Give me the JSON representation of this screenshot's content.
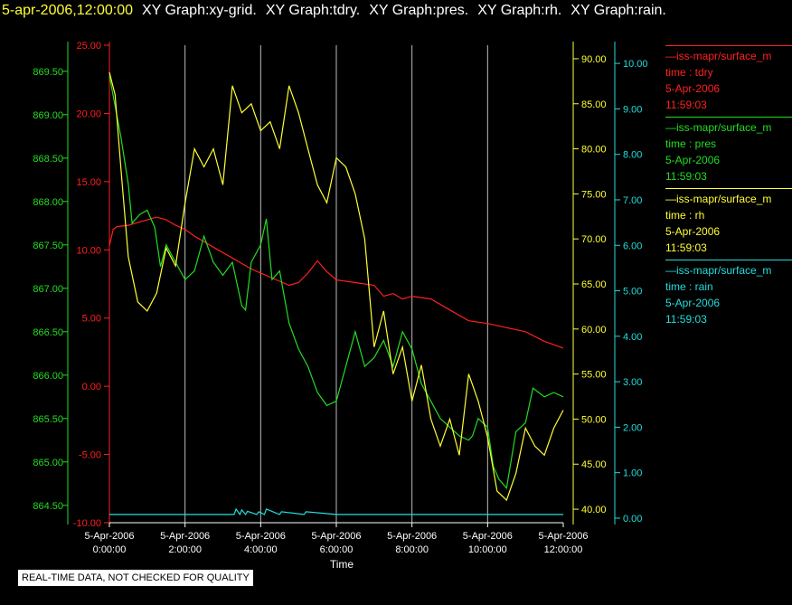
{
  "header": {
    "datetime": "5-apr-2006,12:00:00",
    "graphs": [
      "XY Graph:xy-grid.",
      "XY Graph:tdry.",
      "XY Graph:pres.",
      "XY Graph:rh.",
      "XY Graph:rain."
    ]
  },
  "legend": [
    {
      "source": "—iss-mapr/surface_m",
      "var": "time : tdry",
      "date": "5-Apr-2006",
      "time": "11:59:03",
      "color": "#ff2020"
    },
    {
      "source": "—iss-mapr/surface_m",
      "var": "time : pres",
      "date": "5-Apr-2006",
      "time": "11:59:03",
      "color": "#22dd22"
    },
    {
      "source": "—iss-mapr/surface_m",
      "var": "time : rh",
      "date": "5-Apr-2006",
      "time": "11:59:03",
      "color": "#ffff33"
    },
    {
      "source": "—iss-mapr/surface_m",
      "var": "time : rain",
      "date": "5-Apr-2006",
      "time": "11:59:03",
      "color": "#22dddd"
    }
  ],
  "notice": "REAL-TIME DATA, NOT CHECKED FOR QUALITY",
  "chart_data": {
    "type": "line",
    "xlabel": "Time",
    "x_ticks": [
      {
        "date": "5-Apr-2006",
        "time": "0:00:00"
      },
      {
        "date": "5-Apr-2006",
        "time": "2:00:00"
      },
      {
        "date": "5-Apr-2006",
        "time": "4:00:00"
      },
      {
        "date": "5-Apr-2006",
        "time": "6:00:00"
      },
      {
        "date": "5-Apr-2006",
        "time": "8:00:00"
      },
      {
        "date": "5-Apr-2006",
        "time": "10:00:00"
      },
      {
        "date": "5-Apr-2006",
        "time": "12:00:00"
      }
    ],
    "x_hours": [
      0,
      2,
      4,
      6,
      8,
      10,
      12
    ],
    "xlim_hours": [
      0,
      12
    ],
    "grid": "vertical",
    "axes": {
      "tdry": {
        "color": "#ff2020",
        "ylim": [
          -10,
          25
        ],
        "ticks": [
          "25.00",
          "20.00",
          "15.00",
          "10.00",
          "5.00",
          "0.00",
          "-5.00",
          "-10.00"
        ],
        "tick_values": [
          25,
          20,
          15,
          10,
          5,
          0,
          -5,
          -10
        ]
      },
      "pres": {
        "color": "#22dd22",
        "ylim": [
          864.3,
          869.8
        ],
        "ticks": [
          "869.50",
          "869.00",
          "868.50",
          "868.00",
          "867.50",
          "867.00",
          "866.50",
          "866.00",
          "865.50",
          "865.00",
          "864.50"
        ],
        "tick_values": [
          869.5,
          869,
          868.5,
          868,
          867.5,
          867,
          866.5,
          866,
          865.5,
          865,
          864.5
        ]
      },
      "rh": {
        "color": "#ffff33",
        "ylim": [
          38.5,
          91.5
        ],
        "ticks": [
          "90.00",
          "85.00",
          "80.00",
          "75.00",
          "70.00",
          "65.00",
          "60.00",
          "55.00",
          "50.00",
          "45.00",
          "40.00"
        ],
        "tick_values": [
          90,
          85,
          80,
          75,
          70,
          65,
          60,
          55,
          50,
          45,
          40
        ]
      },
      "rain": {
        "color": "#22dddd",
        "ylim": [
          -0.1,
          10.4
        ],
        "ticks": [
          "10.00",
          "9.00",
          "8.00",
          "7.00",
          "6.00",
          "5.00",
          "4.00",
          "3.00",
          "2.00",
          "1.00",
          "0.00"
        ],
        "tick_values": [
          10,
          9,
          8,
          7,
          6,
          5,
          4,
          3,
          2,
          1,
          0
        ]
      }
    },
    "series": [
      {
        "name": "tdry",
        "color": "#ff2020",
        "x": [
          0,
          0.1,
          0.2,
          0.5,
          1,
          1.25,
          1.5,
          1.75,
          2,
          2.25,
          2.5,
          2.75,
          3,
          3.25,
          3.5,
          3.75,
          4,
          4.25,
          4.5,
          4.75,
          5,
          5.25,
          5.5,
          5.75,
          6,
          6.5,
          7,
          7.25,
          7.5,
          7.75,
          8,
          8.5,
          9,
          9.5,
          10,
          10.5,
          11,
          11.5,
          12
        ],
        "y": [
          10.3,
          11.5,
          11.7,
          11.8,
          12.2,
          12.4,
          12.2,
          11.8,
          11.5,
          11.0,
          10.6,
          10.2,
          9.8,
          9.4,
          9.0,
          8.6,
          8.3,
          8.0,
          7.7,
          7.4,
          7.6,
          8.3,
          9.2,
          8.4,
          7.8,
          7.6,
          7.4,
          6.6,
          6.8,
          6.4,
          6.6,
          6.4,
          5.6,
          4.8,
          4.6,
          4.3,
          4.0,
          3.3,
          2.8
        ]
      },
      {
        "name": "pres",
        "color": "#22dd22",
        "x": [
          0,
          0.15,
          0.3,
          0.5,
          0.6,
          0.8,
          1.0,
          1.2,
          1.35,
          1.5,
          1.75,
          2.0,
          2.25,
          2.5,
          2.75,
          3.0,
          3.25,
          3.5,
          3.6,
          3.75,
          4.0,
          4.15,
          4.3,
          4.5,
          4.75,
          5.0,
          5.25,
          5.5,
          5.75,
          6.0,
          6.25,
          6.5,
          6.75,
          7.0,
          7.25,
          7.5,
          7.75,
          8.0,
          8.25,
          8.5,
          8.75,
          9.0,
          9.25,
          9.5,
          9.6,
          9.75,
          10.0,
          10.15,
          10.3,
          10.5,
          10.75,
          11.0,
          11.2,
          11.5,
          11.75,
          12.0
        ],
        "y": [
          869.45,
          869.1,
          868.75,
          868.2,
          867.75,
          867.85,
          867.9,
          867.7,
          867.25,
          867.5,
          867.3,
          867.1,
          867.2,
          867.6,
          867.3,
          867.15,
          867.3,
          866.8,
          866.75,
          867.3,
          867.5,
          867.8,
          867.1,
          867.2,
          866.6,
          866.3,
          866.1,
          865.8,
          865.65,
          865.7,
          866.1,
          866.5,
          866.1,
          866.2,
          866.4,
          866.1,
          866.5,
          866.3,
          865.9,
          865.7,
          865.5,
          865.4,
          865.3,
          865.25,
          865.3,
          865.5,
          865.4,
          864.95,
          864.8,
          864.7,
          865.35,
          865.45,
          865.85,
          865.75,
          865.8,
          865.75
        ]
      },
      {
        "name": "rh",
        "color": "#ffff33",
        "x": [
          0,
          0.15,
          0.3,
          0.5,
          0.75,
          1.0,
          1.25,
          1.5,
          1.75,
          2.0,
          2.25,
          2.5,
          2.75,
          3.0,
          3.25,
          3.5,
          3.75,
          4.0,
          4.25,
          4.5,
          4.75,
          5.0,
          5.25,
          5.5,
          5.75,
          6.0,
          6.25,
          6.5,
          6.75,
          7.0,
          7.25,
          7.5,
          7.75,
          8.0,
          8.25,
          8.5,
          8.75,
          9.0,
          9.25,
          9.5,
          9.75,
          10.0,
          10.25,
          10.5,
          10.75,
          11.0,
          11.25,
          11.5,
          11.75,
          12.0
        ],
        "y": [
          88.5,
          86,
          78,
          68,
          63,
          62,
          64,
          69,
          67,
          74,
          80,
          78,
          80,
          76,
          87,
          84,
          85,
          82,
          83,
          80,
          87,
          84,
          80,
          76,
          74,
          79,
          78,
          75,
          70,
          58,
          62,
          55,
          58,
          52,
          56,
          50,
          47,
          50,
          46,
          55,
          52,
          48,
          42,
          41,
          44,
          49,
          47,
          46,
          49,
          51
        ]
      },
      {
        "name": "rain",
        "color": "#22dddd",
        "x": [
          0,
          3.3,
          3.35,
          3.45,
          3.5,
          3.6,
          3.65,
          3.9,
          3.95,
          4.1,
          4.15,
          4.5,
          4.55,
          5.15,
          5.2,
          6.0,
          12.0
        ],
        "y": [
          0.08,
          0.08,
          0.2,
          0.08,
          0.18,
          0.08,
          0.15,
          0.08,
          0.14,
          0.08,
          0.2,
          0.08,
          0.14,
          0.08,
          0.14,
          0.08,
          0.08
        ]
      }
    ]
  }
}
